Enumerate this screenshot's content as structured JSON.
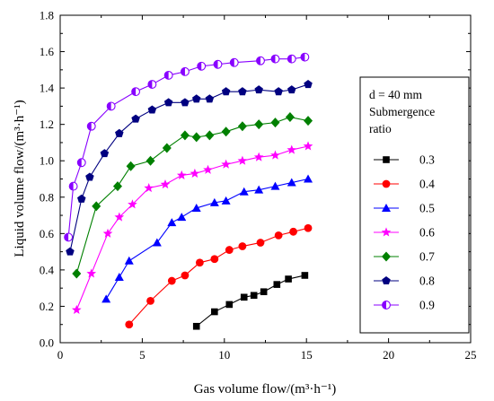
{
  "chart_data": {
    "type": "line",
    "xlabel": "Gas volume flow/(m³·h⁻¹)",
    "ylabel": "Liquid volume flow/(m³·h⁻¹)",
    "xlim": [
      0,
      25
    ],
    "ylim": [
      0.0,
      1.8
    ],
    "xticks": [
      0,
      5,
      10,
      15,
      20,
      25
    ],
    "yticks": [
      0.0,
      0.2,
      0.4,
      0.6,
      0.8,
      1.0,
      1.2,
      1.4,
      1.6,
      1.8
    ],
    "ytick_labels": [
      "0.0",
      "0.2",
      "0.4",
      "0.6",
      "0.8",
      "1.0",
      "1.2",
      "1.4",
      "1.6",
      "1.8"
    ],
    "grid": false,
    "legend": {
      "placement": "right",
      "title_lines": [
        "d = 40 mm",
        "Submergence",
        "ratio"
      ]
    },
    "series": [
      {
        "name": "0.3",
        "color": "#000000",
        "marker": "square",
        "x": [
          8.3,
          9.4,
          10.3,
          11.2,
          11.8,
          12.4,
          13.2,
          13.9,
          14.9
        ],
        "y": [
          0.09,
          0.17,
          0.21,
          0.25,
          0.26,
          0.28,
          0.32,
          0.35,
          0.37
        ]
      },
      {
        "name": "0.4",
        "color": "#ff0000",
        "marker": "circle",
        "x": [
          4.2,
          5.5,
          6.8,
          7.6,
          8.5,
          9.4,
          10.3,
          11.1,
          12.2,
          13.3,
          14.2,
          15.1
        ],
        "y": [
          0.1,
          0.23,
          0.34,
          0.37,
          0.44,
          0.46,
          0.51,
          0.53,
          0.55,
          0.59,
          0.61,
          0.63
        ]
      },
      {
        "name": "0.5",
        "color": "#0000ff",
        "marker": "triangle",
        "x": [
          2.8,
          3.6,
          4.2,
          5.9,
          6.8,
          7.4,
          8.3,
          9.4,
          10.1,
          11.2,
          12.1,
          13.1,
          14.1,
          15.1
        ],
        "y": [
          0.24,
          0.36,
          0.45,
          0.55,
          0.66,
          0.69,
          0.74,
          0.77,
          0.78,
          0.83,
          0.84,
          0.86,
          0.88,
          0.9
        ]
      },
      {
        "name": "0.6",
        "color": "#ff00ff",
        "marker": "star",
        "x": [
          1.0,
          1.9,
          2.9,
          3.6,
          4.4,
          5.4,
          6.4,
          7.4,
          8.2,
          9.0,
          10.1,
          11.1,
          12.1,
          13.1,
          14.1,
          15.1
        ],
        "y": [
          0.18,
          0.38,
          0.6,
          0.69,
          0.76,
          0.85,
          0.87,
          0.92,
          0.93,
          0.95,
          0.98,
          1.0,
          1.02,
          1.03,
          1.06,
          1.08
        ]
      },
      {
        "name": "0.7",
        "color": "#008000",
        "marker": "diamond",
        "x": [
          1.0,
          2.2,
          3.5,
          4.3,
          5.5,
          6.5,
          7.6,
          8.3,
          9.1,
          10.1,
          11.1,
          12.1,
          13.1,
          14.0,
          15.1
        ],
        "y": [
          0.38,
          0.75,
          0.86,
          0.97,
          1.0,
          1.07,
          1.14,
          1.13,
          1.14,
          1.16,
          1.19,
          1.2,
          1.21,
          1.24,
          1.22
        ]
      },
      {
        "name": "0.8",
        "color": "#000080",
        "marker": "pentagon",
        "x": [
          0.6,
          1.3,
          1.8,
          2.7,
          3.6,
          4.6,
          5.6,
          6.6,
          7.6,
          8.3,
          9.1,
          10.1,
          11.1,
          12.1,
          13.3,
          14.1,
          15.1
        ],
        "y": [
          0.5,
          0.79,
          0.91,
          1.04,
          1.15,
          1.23,
          1.28,
          1.32,
          1.32,
          1.34,
          1.34,
          1.38,
          1.38,
          1.39,
          1.38,
          1.39,
          1.42
        ]
      },
      {
        "name": "0.9",
        "color": "#8800ff",
        "marker": "halfcircle",
        "x": [
          0.5,
          0.8,
          1.3,
          1.9,
          3.1,
          4.6,
          5.6,
          6.6,
          7.6,
          8.6,
          9.6,
          10.6,
          12.2,
          13.1,
          14.1,
          14.9
        ],
        "y": [
          0.58,
          0.86,
          0.99,
          1.19,
          1.3,
          1.38,
          1.42,
          1.47,
          1.49,
          1.52,
          1.53,
          1.54,
          1.55,
          1.56,
          1.56,
          1.57
        ]
      }
    ]
  }
}
